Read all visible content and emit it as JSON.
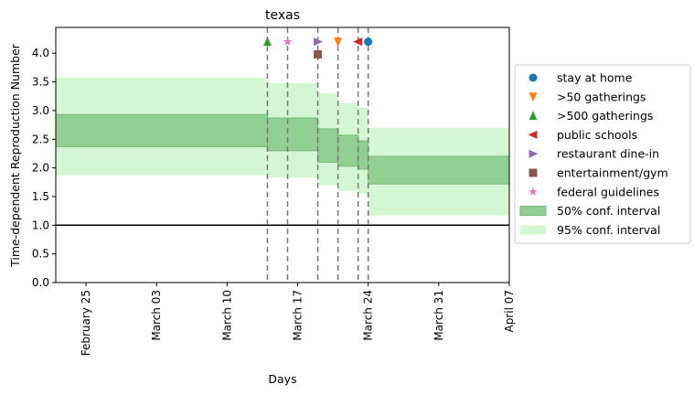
{
  "chart_data": {
    "type": "area",
    "title": "texas",
    "xlabel": "Days",
    "ylabel": "Time-dependent Reproduction Number",
    "x_start": "2020-02-22",
    "x_end": "2020-04-07",
    "ylim": [
      0,
      4.45
    ],
    "yticks": [
      0.0,
      0.5,
      1.0,
      1.5,
      2.0,
      2.5,
      3.0,
      3.5,
      4.0
    ],
    "ytick_labels": [
      "0.0",
      "0.5",
      "1.0",
      "1.5",
      "2.0",
      "2.5",
      "3.0",
      "3.5",
      "4.0"
    ],
    "xticks": [
      {
        "date": "2020-02-25",
        "label": "February 25"
      },
      {
        "date": "2020-03-03",
        "label": "March 03"
      },
      {
        "date": "2020-03-10",
        "label": "March 10"
      },
      {
        "date": "2020-03-17",
        "label": "March 17"
      },
      {
        "date": "2020-03-24",
        "label": "March 24"
      },
      {
        "date": "2020-03-31",
        "label": "March 31"
      },
      {
        "date": "2020-04-07",
        "label": "April 07"
      }
    ],
    "reference_line": 1.0,
    "segments": [
      {
        "start": "2020-02-22",
        "end": "2020-03-14",
        "ci50": [
          2.37,
          2.93
        ],
        "ci95": [
          1.87,
          3.57
        ]
      },
      {
        "start": "2020-03-14",
        "end": "2020-03-19",
        "ci50": [
          2.3,
          2.87
        ],
        "ci95": [
          1.83,
          3.48
        ]
      },
      {
        "start": "2020-03-19",
        "end": "2020-03-21",
        "ci50": [
          2.1,
          2.68
        ],
        "ci95": [
          1.7,
          3.3
        ]
      },
      {
        "start": "2020-03-21",
        "end": "2020-03-23",
        "ci50": [
          2.03,
          2.57
        ],
        "ci95": [
          1.6,
          3.13
        ]
      },
      {
        "start": "2020-03-23",
        "end": "2020-03-24",
        "ci50": [
          1.98,
          2.47
        ],
        "ci95": [
          1.55,
          3.05
        ]
      },
      {
        "start": "2020-03-24",
        "end": "2020-04-07",
        "ci50": [
          1.72,
          2.2
        ],
        "ci95": [
          1.17,
          2.7
        ]
      }
    ],
    "interventions": [
      {
        "name": "stay at home",
        "date": "2020-03-24",
        "y": 4.2,
        "marker": "circle",
        "color": "#1f77b4"
      },
      {
        "name": ">50 gatherings",
        "date": "2020-03-21",
        "y": 4.2,
        "marker": "triangle-down",
        "color": "#ff7f0e"
      },
      {
        "name": ">500 gatherings",
        "date": "2020-03-14",
        "y": 4.2,
        "marker": "triangle-up",
        "color": "#2ca02c"
      },
      {
        "name": "public schools",
        "date": "2020-03-23",
        "y": 4.2,
        "marker": "triangle-left",
        "color": "#d62728"
      },
      {
        "name": "restaurant dine-in",
        "date": "2020-03-19",
        "y": 4.2,
        "marker": "triangle-right",
        "color": "#9467bd"
      },
      {
        "name": "entertainment/gym",
        "date": "2020-03-19",
        "y": 3.98,
        "marker": "square",
        "color": "#8c564b"
      },
      {
        "name": "federal guidelines",
        "date": "2020-03-16",
        "y": 4.2,
        "marker": "star",
        "color": "#e377c2"
      }
    ],
    "legend": {
      "placement": "right",
      "items": [
        {
          "label": "stay at home",
          "marker": "circle",
          "color": "#1f77b4"
        },
        {
          "label": ">50 gatherings",
          "marker": "triangle-down",
          "color": "#ff7f0e"
        },
        {
          "label": ">500 gatherings",
          "marker": "triangle-up",
          "color": "#2ca02c"
        },
        {
          "label": "public schools",
          "marker": "triangle-left",
          "color": "#d62728"
        },
        {
          "label": "restaurant dine-in",
          "marker": "triangle-right",
          "color": "#9467bd"
        },
        {
          "label": "entertainment/gym",
          "marker": "square",
          "color": "#8c564b"
        },
        {
          "label": "federal guidelines",
          "marker": "star",
          "color": "#e377c2"
        },
        {
          "label": "50% conf. interval",
          "marker": "patch",
          "color": "#92cf92"
        },
        {
          "label": "95% conf. interval",
          "marker": "patch",
          "color": "#d2f7d2"
        }
      ]
    },
    "colors": {
      "ci50_fill": "#92cf92",
      "ci50_edge": "#74b874",
      "ci95_fill": "#d2f7d2",
      "vline": "#777777",
      "refline": "#000000"
    },
    "grid": false
  }
}
